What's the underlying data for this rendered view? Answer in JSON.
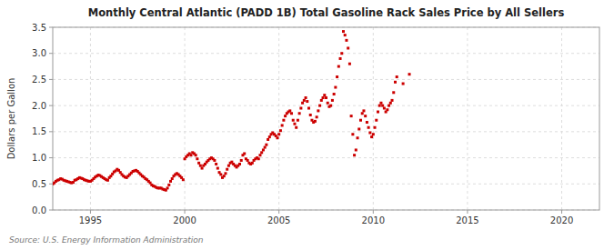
{
  "chart_data": {
    "type": "scatter",
    "title": "Monthly Central Atlantic (PADD 1B) Total Gasoline Rack Sales Price by All Sellers",
    "y_label": "Dollars per Gallon",
    "annotations": [
      "Source: U.S. Energy Information Administration"
    ],
    "color": "#cc0000",
    "marker": "square",
    "grid": true,
    "xlim": [
      1993.0,
      2022.0
    ],
    "ylim": [
      0.0,
      3.5
    ],
    "xticks": [
      1995,
      2000,
      2005,
      2010,
      2015,
      2020
    ],
    "yticks": [
      {
        "value": 0.0,
        "label": "0.0"
      },
      0.5,
      {
        "value": 1.0,
        "label": "1.0"
      },
      1.5,
      {
        "value": 2.0,
        "label": "2.0"
      },
      2.5,
      {
        "value": 3.0,
        "label": "3.0"
      },
      3.5
    ],
    "x": [
      1993.0,
      1993.083,
      1993.167,
      1993.25,
      1993.333,
      1993.417,
      1993.5,
      1993.583,
      1993.667,
      1993.75,
      1993.833,
      1993.917,
      1994.0,
      1994.083,
      1994.167,
      1994.25,
      1994.333,
      1994.417,
      1994.5,
      1994.583,
      1994.667,
      1994.75,
      1994.833,
      1994.917,
      1995.0,
      1995.083,
      1995.167,
      1995.25,
      1995.333,
      1995.417,
      1995.5,
      1995.583,
      1995.667,
      1995.75,
      1995.833,
      1995.917,
      1996.0,
      1996.083,
      1996.167,
      1996.25,
      1996.333,
      1996.417,
      1996.5,
      1996.583,
      1996.667,
      1996.75,
      1996.833,
      1996.917,
      1997.0,
      1997.083,
      1997.167,
      1997.25,
      1997.333,
      1997.417,
      1997.5,
      1997.583,
      1997.667,
      1997.75,
      1997.833,
      1997.917,
      1998.0,
      1998.083,
      1998.167,
      1998.25,
      1998.333,
      1998.417,
      1998.5,
      1998.583,
      1998.667,
      1998.75,
      1998.833,
      1998.917,
      1999.0,
      1999.083,
      1999.167,
      1999.25,
      1999.333,
      1999.417,
      1999.5,
      1999.583,
      1999.667,
      1999.75,
      1999.833,
      1999.917,
      2000.0,
      2000.083,
      2000.167,
      2000.25,
      2000.333,
      2000.417,
      2000.5,
      2000.583,
      2000.667,
      2000.75,
      2000.833,
      2000.917,
      2001.0,
      2001.083,
      2001.167,
      2001.25,
      2001.333,
      2001.417,
      2001.5,
      2001.583,
      2001.667,
      2001.75,
      2001.833,
      2001.917,
      2002.0,
      2002.083,
      2002.167,
      2002.25,
      2002.333,
      2002.417,
      2002.5,
      2002.583,
      2002.667,
      2002.75,
      2002.833,
      2002.917,
      2003.0,
      2003.083,
      2003.167,
      2003.25,
      2003.333,
      2003.417,
      2003.5,
      2003.583,
      2003.667,
      2003.75,
      2003.833,
      2003.917,
      2004.0,
      2004.083,
      2004.167,
      2004.25,
      2004.333,
      2004.417,
      2004.5,
      2004.583,
      2004.667,
      2004.75,
      2004.833,
      2004.917,
      2005.0,
      2005.083,
      2005.167,
      2005.25,
      2005.333,
      2005.417,
      2005.5,
      2005.583,
      2005.667,
      2005.75,
      2005.833,
      2005.917,
      2006.0,
      2006.083,
      2006.167,
      2006.25,
      2006.333,
      2006.417,
      2006.5,
      2006.583,
      2006.667,
      2006.75,
      2006.833,
      2006.917,
      2007.0,
      2007.083,
      2007.167,
      2007.25,
      2007.333,
      2007.417,
      2007.5,
      2007.583,
      2007.667,
      2007.75,
      2007.833,
      2007.917,
      2008.0,
      2008.083,
      2008.167,
      2008.25,
      2008.333,
      2008.417,
      2008.5,
      2008.583,
      2008.667,
      2008.75,
      2008.833,
      2008.917,
      2009.0,
      2009.083,
      2009.167,
      2009.25,
      2009.333,
      2009.417,
      2009.5,
      2009.583,
      2009.667,
      2009.75,
      2009.833,
      2009.917,
      2010.0,
      2010.083,
      2010.167,
      2010.25,
      2010.333,
      2010.417,
      2010.5,
      2010.583,
      2010.667,
      2010.75,
      2010.833,
      2010.917,
      2011.0,
      2011.083,
      2011.167,
      2011.25,
      2011.583,
      2011.917
    ],
    "values": [
      0.5,
      0.52,
      0.55,
      0.57,
      0.58,
      0.6,
      0.59,
      0.57,
      0.56,
      0.55,
      0.54,
      0.53,
      0.52,
      0.53,
      0.57,
      0.58,
      0.6,
      0.62,
      0.61,
      0.6,
      0.58,
      0.57,
      0.56,
      0.55,
      0.55,
      0.57,
      0.6,
      0.63,
      0.65,
      0.67,
      0.66,
      0.64,
      0.62,
      0.6,
      0.58,
      0.57,
      0.62,
      0.65,
      0.69,
      0.73,
      0.75,
      0.78,
      0.76,
      0.72,
      0.68,
      0.65,
      0.63,
      0.62,
      0.65,
      0.68,
      0.71,
      0.74,
      0.75,
      0.76,
      0.74,
      0.71,
      0.68,
      0.65,
      0.63,
      0.6,
      0.58,
      0.55,
      0.52,
      0.48,
      0.46,
      0.45,
      0.43,
      0.42,
      0.42,
      0.42,
      0.4,
      0.39,
      0.38,
      0.42,
      0.48,
      0.55,
      0.6,
      0.65,
      0.68,
      0.7,
      0.68,
      0.65,
      0.62,
      0.58,
      0.98,
      1.02,
      1.05,
      1.08,
      1.05,
      1.1,
      1.08,
      1.05,
      0.98,
      0.9,
      0.85,
      0.8,
      0.85,
      0.88,
      0.92,
      0.95,
      0.98,
      1.0,
      0.98,
      0.95,
      0.88,
      0.8,
      0.72,
      0.68,
      0.62,
      0.65,
      0.7,
      0.78,
      0.85,
      0.9,
      0.92,
      0.88,
      0.85,
      0.82,
      0.85,
      0.88,
      0.95,
      1.05,
      1.08,
      0.98,
      0.95,
      0.9,
      0.88,
      0.9,
      0.95,
      0.98,
      1.0,
      0.98,
      1.05,
      1.1,
      1.15,
      1.2,
      1.25,
      1.35,
      1.4,
      1.45,
      1.48,
      1.45,
      1.42,
      1.38,
      1.45,
      1.52,
      1.62,
      1.72,
      1.8,
      1.85,
      1.88,
      1.9,
      1.85,
      1.72,
      1.65,
      1.58,
      1.72,
      1.85,
      1.95,
      2.05,
      2.1,
      2.15,
      2.08,
      1.95,
      1.82,
      1.72,
      1.68,
      1.7,
      1.78,
      1.9,
      2.0,
      2.1,
      2.15,
      2.2,
      2.15,
      2.05,
      1.98,
      2.0,
      2.1,
      2.22,
      2.35,
      2.55,
      2.75,
      2.9,
      3.0,
      3.42,
      3.35,
      3.25,
      3.1,
      2.8,
      1.8,
      1.45,
      1.05,
      1.15,
      1.38,
      1.55,
      1.72,
      1.85,
      1.9,
      1.8,
      1.68,
      1.58,
      1.48,
      1.4,
      1.45,
      1.58,
      1.72,
      1.88,
      2.0,
      2.05,
      2.0,
      1.95,
      1.88,
      1.92,
      2.0,
      2.05,
      2.1,
      2.25,
      2.45,
      2.55,
      2.42,
      2.6
    ]
  }
}
